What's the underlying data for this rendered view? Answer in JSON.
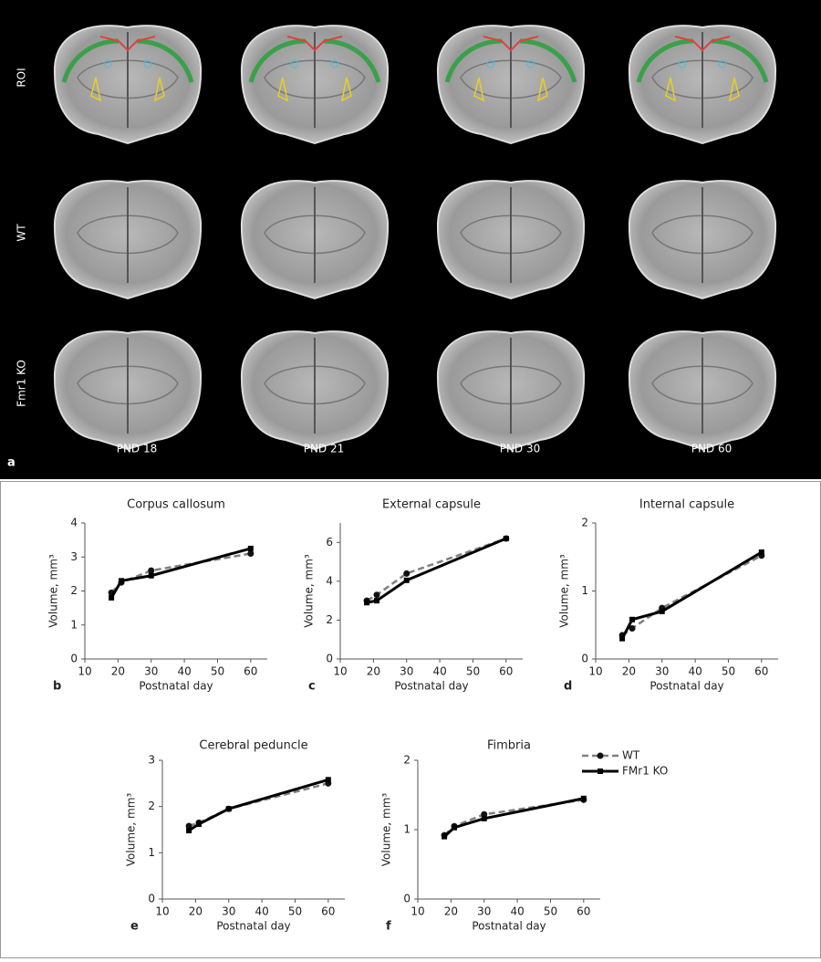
{
  "image_panel": {
    "panel": "a",
    "rows": [
      "ROI",
      "WT",
      "Fmr1 KO"
    ],
    "columns": [
      "PND 18",
      "PND 21",
      "PND 30",
      "PND 60"
    ]
  },
  "chart_data": [
    {
      "type": "line",
      "panel": "b",
      "title": "Corpus callosum",
      "xlabel": "Postnatal day",
      "ylabel": "Volume, mm³",
      "x": [
        18,
        21,
        30,
        60
      ],
      "xlim": [
        10,
        65
      ],
      "xticks": [
        10,
        20,
        30,
        40,
        50,
        60
      ],
      "ylim": [
        0,
        4
      ],
      "yticks": [
        0,
        1,
        2,
        3,
        4
      ],
      "series": [
        {
          "color": "#808080",
          "dash": true,
          "marker": "circle",
          "values": [
            1.95,
            2.25,
            2.6,
            3.1
          ]
        },
        {
          "color": "#000000",
          "dash": false,
          "marker": "square",
          "values": [
            1.8,
            2.3,
            2.45,
            3.25
          ]
        }
      ]
    },
    {
      "type": "line",
      "panel": "c",
      "title": "External capsule",
      "xlabel": "Postnatal day",
      "ylabel": "Volume, mm³",
      "x": [
        18,
        21,
        30,
        60
      ],
      "xlim": [
        10,
        65
      ],
      "xticks": [
        10,
        20,
        30,
        40,
        50,
        60
      ],
      "ylim": [
        0,
        7
      ],
      "yticks": [
        0,
        2,
        4,
        6
      ],
      "series": [
        {
          "color": "#808080",
          "dash": true,
          "marker": "circle",
          "values": [
            3.0,
            3.3,
            4.4,
            6.2
          ]
        },
        {
          "color": "#000000",
          "dash": false,
          "marker": "square",
          "values": [
            2.9,
            3.0,
            4.05,
            6.2
          ]
        }
      ]
    },
    {
      "type": "line",
      "panel": "d",
      "title": "Internal capsule",
      "xlabel": "Postnatal day",
      "ylabel": "Volume, mm³",
      "x": [
        18,
        21,
        30,
        60
      ],
      "xlim": [
        10,
        65
      ],
      "xticks": [
        10,
        20,
        30,
        40,
        50,
        60
      ],
      "ylim": [
        0,
        2
      ],
      "yticks": [
        0,
        1,
        2
      ],
      "series": [
        {
          "color": "#808080",
          "dash": true,
          "marker": "circle",
          "values": [
            0.35,
            0.45,
            0.75,
            1.52
          ]
        },
        {
          "color": "#000000",
          "dash": false,
          "marker": "square",
          "values": [
            0.3,
            0.58,
            0.7,
            1.57
          ]
        }
      ]
    },
    {
      "type": "line",
      "panel": "e",
      "title": "Cerebral peduncle",
      "xlabel": "Postnatal day",
      "ylabel": "Volume, mm³",
      "x": [
        18,
        21,
        30,
        60
      ],
      "xlim": [
        10,
        65
      ],
      "xticks": [
        10,
        20,
        30,
        40,
        50,
        60
      ],
      "ylim": [
        0,
        3
      ],
      "yticks": [
        0,
        1,
        2,
        3
      ],
      "series": [
        {
          "color": "#808080",
          "dash": true,
          "marker": "circle",
          "values": [
            1.58,
            1.65,
            1.95,
            2.5
          ]
        },
        {
          "color": "#000000",
          "dash": false,
          "marker": "square",
          "values": [
            1.48,
            1.62,
            1.95,
            2.58
          ]
        }
      ]
    },
    {
      "type": "line",
      "panel": "f",
      "title": "Fimbria",
      "xlabel": "Postnatal day",
      "ylabel": "Volume, mm³",
      "x": [
        18,
        21,
        30,
        60
      ],
      "xlim": [
        10,
        65
      ],
      "xticks": [
        10,
        20,
        30,
        40,
        50,
        60
      ],
      "ylim": [
        0,
        2
      ],
      "yticks": [
        0,
        1,
        2
      ],
      "legend": "upper right",
      "series": [
        {
          "name": "WT",
          "color": "#808080",
          "dash": true,
          "marker": "circle",
          "values": [
            0.92,
            1.05,
            1.22,
            1.43
          ]
        },
        {
          "name": "FMr1 KO",
          "color": "#000000",
          "dash": false,
          "marker": "square",
          "values": [
            0.9,
            1.03,
            1.16,
            1.45
          ]
        }
      ]
    }
  ]
}
